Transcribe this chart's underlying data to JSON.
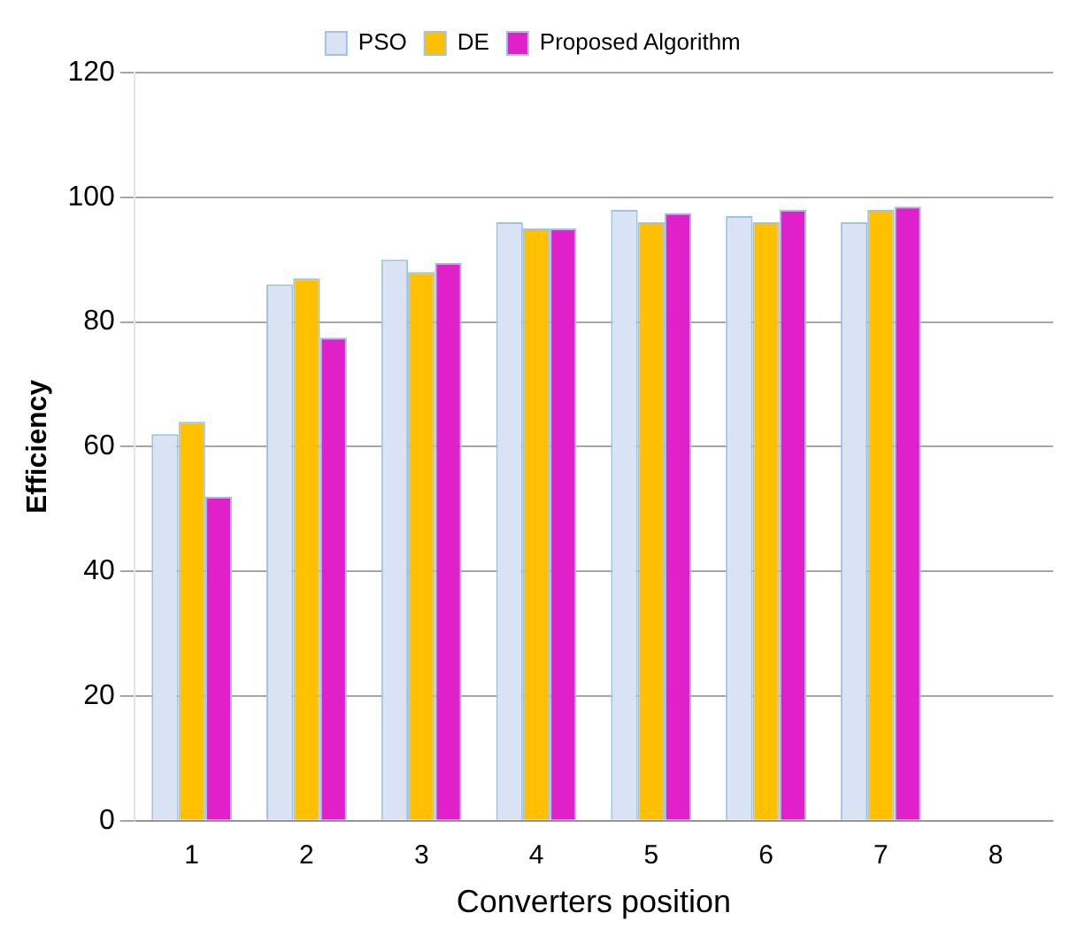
{
  "chart_data": {
    "type": "bar",
    "xlabel": "Converters position",
    "ylabel": "Efficiency",
    "categories": [
      "1",
      "2",
      "3",
      "4",
      "5",
      "6",
      "7",
      "8"
    ],
    "series": [
      {
        "name": "PSO",
        "color": "#dae3f3",
        "values": [
          62,
          86,
          90,
          96,
          98,
          97,
          96,
          null
        ]
      },
      {
        "name": "DE",
        "color": "#ffc000",
        "values": [
          64,
          87,
          88,
          95,
          96,
          96,
          98,
          null
        ]
      },
      {
        "name": "Proposed Algorithm",
        "color": "#e020c8",
        "values": [
          52,
          77.5,
          89.5,
          95,
          97.5,
          98,
          98.5,
          null
        ]
      }
    ],
    "ylim": [
      0,
      120
    ],
    "yticks": [
      0,
      20,
      40,
      60,
      80,
      100,
      120
    ],
    "grid": "y",
    "legend": "top"
  }
}
